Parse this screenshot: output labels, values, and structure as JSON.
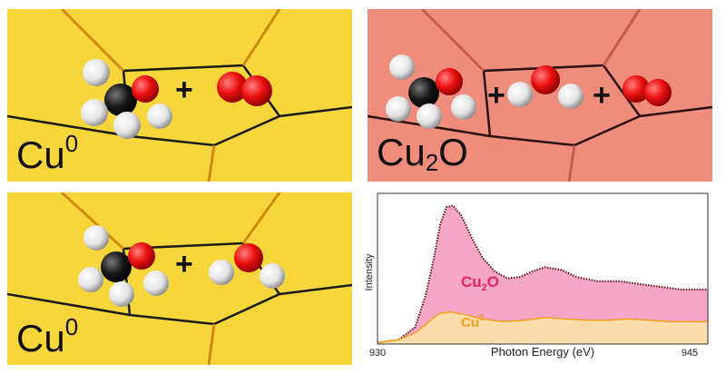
{
  "panels": {
    "top_left": {
      "label_base": "Cu",
      "label_sup": "0",
      "plus_1": "+",
      "background": "#f7d63c"
    },
    "top_right": {
      "label_base": "Cu",
      "label_sub": "2",
      "label_rest": "O",
      "plus_1": "+",
      "plus_2": "+",
      "background": "#f08c7c"
    },
    "bottom_left": {
      "label_base": "Cu",
      "label_sup": "0",
      "plus_1": "+",
      "background": "#f7d63c"
    }
  },
  "chart_data": {
    "type": "area",
    "xlabel": "Photon Energy (eV)",
    "ylabel": "Intensity",
    "xlim": [
      930,
      945
    ],
    "x_tick_labels": [
      "930",
      "945"
    ],
    "series": [
      {
        "name": "Cu2O",
        "label_base": "Cu",
        "label_sub": "2",
        "label_rest": "O",
        "color": "#e0245e",
        "fill": "#f6a7c8",
        "x": [
          930.0,
          931.0,
          931.8,
          932.3,
          932.7,
          933.0,
          933.3,
          933.6,
          934.0,
          934.5,
          935.0,
          935.6,
          936.2,
          936.8,
          937.4,
          938.0,
          938.8,
          939.5,
          940.5,
          941.5,
          942.5,
          943.5,
          944.5,
          945.0
        ],
        "y": [
          0.01,
          0.03,
          0.12,
          0.35,
          0.62,
          0.86,
          0.98,
          0.99,
          0.92,
          0.76,
          0.62,
          0.52,
          0.47,
          0.48,
          0.52,
          0.55,
          0.53,
          0.48,
          0.45,
          0.45,
          0.43,
          0.41,
          0.39,
          0.39
        ]
      },
      {
        "name": "Cu0",
        "label_base": "Cu",
        "label_sup": "0",
        "color": "#f0a020",
        "fill": "#fbdcaa",
        "x": [
          930.0,
          931.0,
          931.8,
          932.3,
          932.7,
          933.0,
          933.5,
          934.2,
          935.0,
          936.0,
          937.0,
          938.0,
          939.0,
          940.0,
          941.0,
          942.0,
          943.0,
          944.0,
          945.0
        ],
        "y": [
          0.01,
          0.03,
          0.08,
          0.14,
          0.19,
          0.22,
          0.23,
          0.21,
          0.18,
          0.16,
          0.17,
          0.19,
          0.18,
          0.17,
          0.17,
          0.18,
          0.17,
          0.16,
          0.16
        ]
      }
    ],
    "data_line_color": "#5a1010"
  }
}
